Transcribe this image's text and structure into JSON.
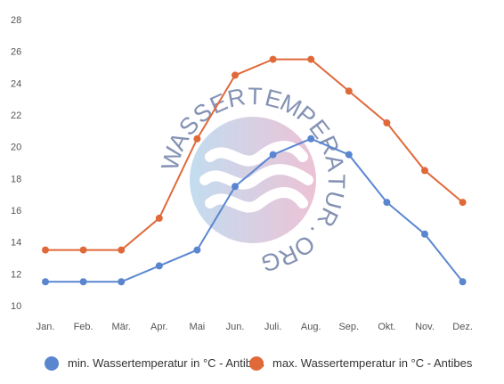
{
  "chart_data": {
    "type": "line",
    "categories": [
      "Jan.",
      "Feb.",
      "Mär.",
      "Apr.",
      "Mai",
      "Jun.",
      "Juli.",
      "Aug.",
      "Sep.",
      "Okt.",
      "Nov.",
      "Dez."
    ],
    "series": [
      {
        "name": "min. Wassertemperatur in °C - Antibes",
        "color": "#5a86d0",
        "values": [
          11.5,
          11.5,
          11.5,
          12.5,
          13.5,
          17.5,
          19.5,
          20.5,
          19.5,
          16.5,
          14.5,
          11.5
        ]
      },
      {
        "name": "max. Wassertemperatur in °C - Antibes",
        "color": "#e0693a",
        "values": [
          13.5,
          13.5,
          13.5,
          15.5,
          20.5,
          24.5,
          25.5,
          25.5,
          23.5,
          21.5,
          18.5,
          16.5
        ]
      }
    ],
    "yticks": [
      10,
      12,
      14,
      16,
      18,
      20,
      22,
      24,
      26,
      28
    ],
    "ylim": [
      10,
      28
    ],
    "grid": false,
    "legend": "bottom",
    "watermark": "WASSERTEMPERATUR.ORG"
  }
}
